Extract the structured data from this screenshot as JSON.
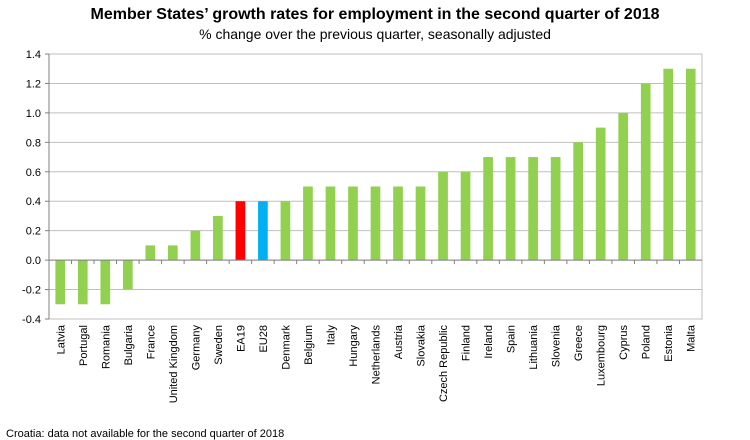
{
  "chart_data": {
    "type": "bar",
    "title": "Member States’ growth rates for employment in the second quarter of 2018",
    "subtitle": "% change over the previous quarter, seasonally adjusted",
    "categories": [
      "Latvia",
      "Portugal",
      "Romania",
      "Bulgaria",
      "France",
      "United Kingdom",
      "Germany",
      "Sweden",
      "EA19",
      "EU28",
      "Denmark",
      "Belgium",
      "Italy",
      "Hungary",
      "Netherlands",
      "Austria",
      "Slovakia",
      "Czech Republic",
      "Finland",
      "Ireland",
      "Spain",
      "Lithuania",
      "Slovenia",
      "Greece",
      "Luxembourg",
      "Cyprus",
      "Poland",
      "Estonia",
      "Malta"
    ],
    "values": [
      -0.3,
      -0.3,
      -0.3,
      -0.2,
      0.1,
      0.1,
      0.2,
      0.3,
      0.4,
      0.4,
      0.4,
      0.5,
      0.5,
      0.5,
      0.5,
      0.5,
      0.5,
      0.6,
      0.6,
      0.7,
      0.7,
      0.7,
      0.7,
      0.8,
      0.9,
      1.0,
      1.2,
      1.3,
      1.3
    ],
    "colors": {
      "default": "#92d050",
      "EA19": "#ff0000",
      "EU28": "#00b0f0"
    },
    "ylim": [
      -0.4,
      1.4
    ],
    "yticks": [
      "-0.4",
      "-0.2",
      "0.0",
      "0.2",
      "0.4",
      "0.6",
      "0.8",
      "1.0",
      "1.2",
      "1.4"
    ],
    "grid": true,
    "xlabel": "",
    "ylabel": "",
    "note": "Croatia: data not available for the second quarter of 2018"
  }
}
